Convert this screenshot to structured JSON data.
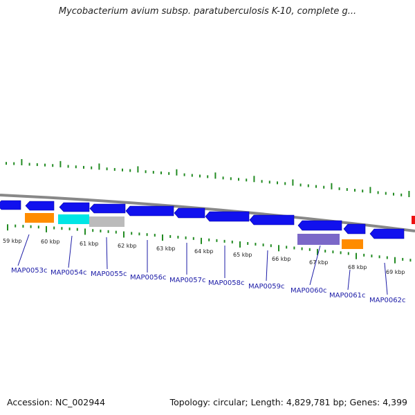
{
  "title": "Mycobacterium avium subsp. paratuberculosis K-10, complete g...",
  "accession": "Accession: NC_002944",
  "summary": "Topology: circular; Length: 4,829,781 bp; Genes: 4,399",
  "kbp_labels": [
    "59 kbp",
    "60 kbp",
    "61 kbp",
    "62 kbp",
    "63 kbp",
    "64 kbp",
    "65 kbp",
    "66 kbp",
    "67 kbp",
    "68 kbp",
    "69 kbp"
  ],
  "gene_labels": [
    "MAP0053c",
    "MAP0054c",
    "MAP0055c",
    "MAP0056c",
    "MAP0057c",
    "MAP0058c",
    "MAP0059c",
    "MAP0060c",
    "MAP0061c",
    "MAP0062c"
  ],
  "colors": {
    "cds": "#1111ee",
    "orange": "#ff8c00",
    "cyan": "#00e5e5",
    "grey": "#bbbbbb",
    "purple": "#7b68c8",
    "red": "#ee1111",
    "backbone": "#888888",
    "ticks": "#228b22",
    "label": "#1a1aa6"
  }
}
